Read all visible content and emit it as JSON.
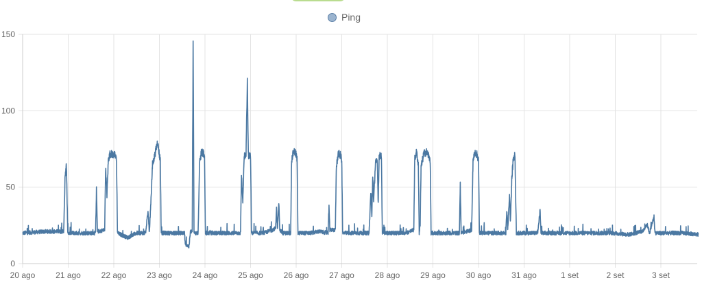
{
  "toggle": {
    "state": "on"
  },
  "legend": {
    "label": "Ping"
  },
  "chart_data": {
    "type": "line",
    "title": "",
    "xlabel": "",
    "ylabel": "",
    "ylim": [
      0,
      150
    ],
    "y_ticks": [
      0,
      50,
      100,
      150
    ],
    "x_range_days": [
      0,
      14.85
    ],
    "x_ticks": [
      {
        "day": 0,
        "label": "20 ago"
      },
      {
        "day": 1,
        "label": "21 ago"
      },
      {
        "day": 2,
        "label": "22 ago"
      },
      {
        "day": 3,
        "label": "23 ago"
      },
      {
        "day": 4,
        "label": "24 ago"
      },
      {
        "day": 5,
        "label": "25 ago"
      },
      {
        "day": 6,
        "label": "26 ago"
      },
      {
        "day": 7,
        "label": "27 ago"
      },
      {
        "day": 8,
        "label": "28 ago"
      },
      {
        "day": 9,
        "label": "29 ago"
      },
      {
        "day": 10,
        "label": "30 ago"
      },
      {
        "day": 11,
        "label": "31 ago"
      },
      {
        "day": 12,
        "label": "1 set"
      },
      {
        "day": 13,
        "label": "2 set"
      },
      {
        "day": 14,
        "label": "3 set"
      }
    ],
    "grid": true,
    "legend_position": "top",
    "series": [
      {
        "name": "Ping",
        "color": "#4b78a2",
        "baseline": 19,
        "points": [
          [
            0,
            20
          ],
          [
            0.5,
            21
          ],
          [
            0.9,
            21
          ],
          [
            0.93,
            55
          ],
          [
            0.96,
            65
          ],
          [
            0.99,
            20
          ],
          [
            1.3,
            20
          ],
          [
            1.6,
            20
          ],
          [
            1.62,
            48
          ],
          [
            1.64,
            21
          ],
          [
            1.8,
            22
          ],
          [
            1.82,
            62
          ],
          [
            1.85,
            45
          ],
          [
            1.88,
            68
          ],
          [
            1.92,
            72
          ],
          [
            2.02,
            71
          ],
          [
            2.06,
            68
          ],
          [
            2.08,
            20
          ],
          [
            2.3,
            17
          ],
          [
            2.5,
            20
          ],
          [
            2.7,
            20
          ],
          [
            2.75,
            35
          ],
          [
            2.78,
            20
          ],
          [
            2.82,
            45
          ],
          [
            2.85,
            65
          ],
          [
            2.9,
            71
          ],
          [
            2.96,
            80
          ],
          [
            3.0,
            71
          ],
          [
            3.02,
            68
          ],
          [
            3.04,
            20
          ],
          [
            3.4,
            20
          ],
          [
            3.55,
            20
          ],
          [
            3.57,
            13
          ],
          [
            3.65,
            11
          ],
          [
            3.68,
            21
          ],
          [
            3.72,
            21
          ],
          [
            3.74,
            144
          ],
          [
            3.76,
            20
          ],
          [
            3.85,
            20
          ],
          [
            3.88,
            65
          ],
          [
            3.92,
            73
          ],
          [
            3.97,
            72
          ],
          [
            3.99,
            68
          ],
          [
            4.01,
            20
          ],
          [
            4.4,
            20
          ],
          [
            4.78,
            20
          ],
          [
            4.8,
            58
          ],
          [
            4.83,
            40
          ],
          [
            4.86,
            70
          ],
          [
            4.9,
            72
          ],
          [
            4.93,
            119
          ],
          [
            4.95,
            71
          ],
          [
            5.0,
            70
          ],
          [
            5.02,
            20
          ],
          [
            5.3,
            20
          ],
          [
            5.55,
            23
          ],
          [
            5.57,
            36
          ],
          [
            5.59,
            22
          ],
          [
            5.62,
            40
          ],
          [
            5.64,
            22
          ],
          [
            5.7,
            20
          ],
          [
            5.88,
            20
          ],
          [
            5.9,
            68
          ],
          [
            5.95,
            74
          ],
          [
            6.0,
            71
          ],
          [
            6.02,
            68
          ],
          [
            6.04,
            20
          ],
          [
            6.3,
            20
          ],
          [
            6.5,
            21
          ],
          [
            6.7,
            20
          ],
          [
            6.72,
            37
          ],
          [
            6.74,
            22
          ],
          [
            6.86,
            22
          ],
          [
            6.88,
            62
          ],
          [
            6.92,
            72
          ],
          [
            6.97,
            71
          ],
          [
            7.0,
            68
          ],
          [
            7.02,
            20
          ],
          [
            7.4,
            20
          ],
          [
            7.6,
            20
          ],
          [
            7.64,
            48
          ],
          [
            7.66,
            30
          ],
          [
            7.68,
            58
          ],
          [
            7.7,
            40
          ],
          [
            7.74,
            67
          ],
          [
            7.78,
            66
          ],
          [
            7.8,
            40
          ],
          [
            7.82,
            70
          ],
          [
            7.87,
            71
          ],
          [
            7.89,
            20
          ],
          [
            8.1,
            20
          ],
          [
            8.4,
            20
          ],
          [
            8.58,
            22
          ],
          [
            8.6,
            68
          ],
          [
            8.64,
            73
          ],
          [
            8.68,
            65
          ],
          [
            8.7,
            20
          ],
          [
            8.72,
            25
          ],
          [
            8.74,
            63
          ],
          [
            8.8,
            72
          ],
          [
            8.86,
            73
          ],
          [
            8.9,
            71
          ],
          [
            8.94,
            68
          ],
          [
            8.96,
            20
          ],
          [
            9.3,
            20
          ],
          [
            9.58,
            20
          ],
          [
            9.6,
            52
          ],
          [
            9.62,
            20
          ],
          [
            9.85,
            22
          ],
          [
            9.88,
            68
          ],
          [
            9.93,
            73
          ],
          [
            9.97,
            71
          ],
          [
            10.0,
            68
          ],
          [
            10.02,
            20
          ],
          [
            10.4,
            20
          ],
          [
            10.6,
            20
          ],
          [
            10.62,
            35
          ],
          [
            10.64,
            22
          ],
          [
            10.68,
            45
          ],
          [
            10.7,
            28
          ],
          [
            10.73,
            55
          ],
          [
            10.76,
            68
          ],
          [
            10.8,
            71
          ],
          [
            10.83,
            20
          ],
          [
            11.0,
            20
          ],
          [
            11.3,
            20
          ],
          [
            11.35,
            35
          ],
          [
            11.37,
            20
          ],
          [
            11.6,
            20
          ],
          [
            11.9,
            20
          ],
          [
            12.3,
            20
          ],
          [
            12.5,
            20
          ],
          [
            12.9,
            20
          ],
          [
            13.3,
            19
          ],
          [
            13.6,
            21
          ],
          [
            13.7,
            26
          ],
          [
            13.75,
            20
          ],
          [
            13.85,
            31
          ],
          [
            13.87,
            20
          ],
          [
            14.2,
            20
          ],
          [
            14.5,
            20
          ],
          [
            14.82,
            19
          ]
        ]
      }
    ]
  }
}
